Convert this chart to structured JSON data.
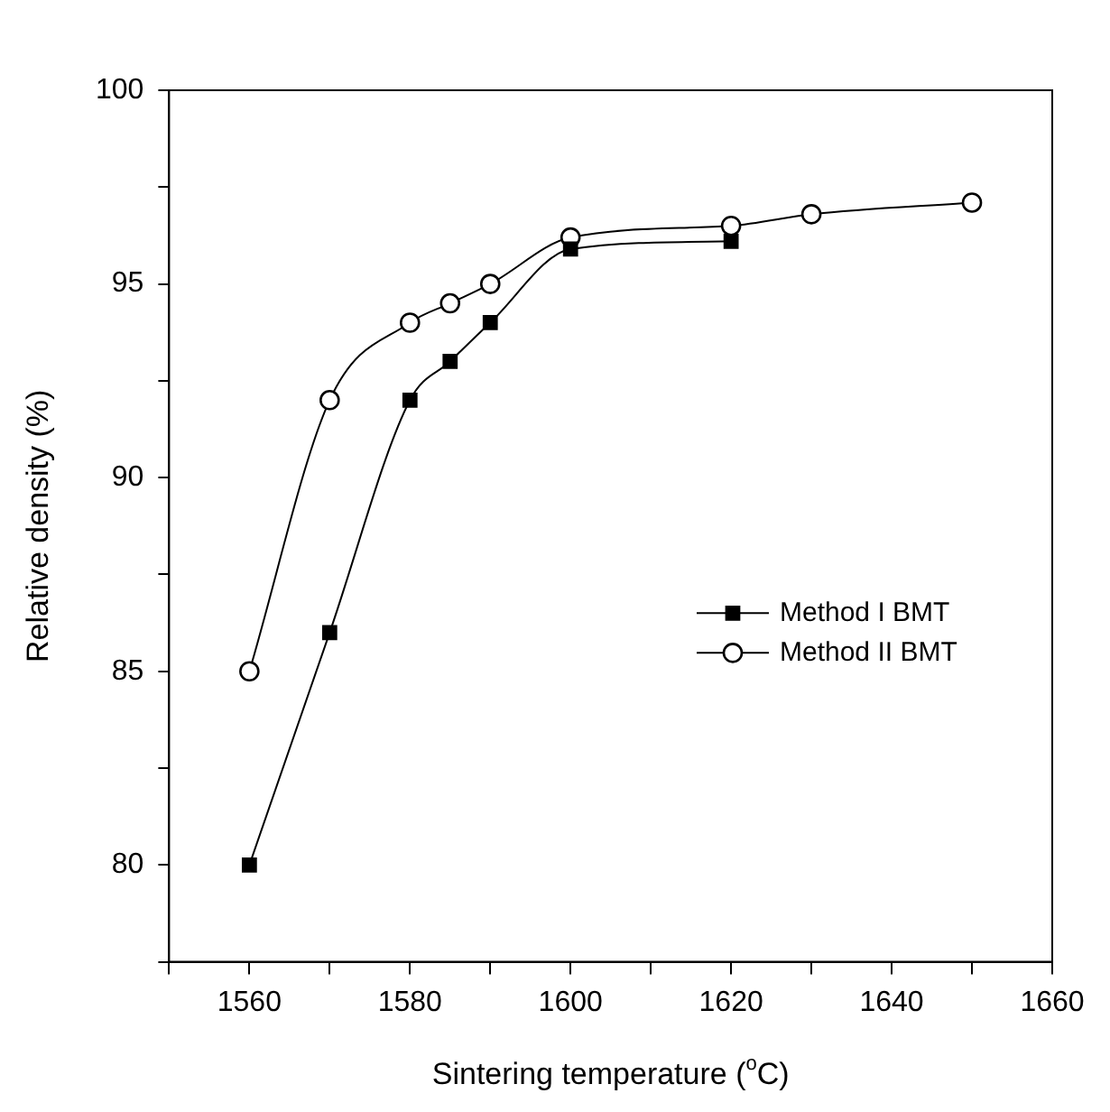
{
  "chart_data": {
    "type": "line",
    "xlabel": "Sintering temperature ($^{o}$C)",
    "ylabel": "Relative density (%)",
    "xlim": [
      1550,
      1660
    ],
    "xticks": [
      {
        "value": 1550,
        "label": null
      },
      1560,
      {
        "value": 1570,
        "label": null
      },
      1580,
      {
        "value": 1590,
        "label": null
      },
      1600,
      {
        "value": 1610,
        "label": null
      },
      1620,
      {
        "value": 1630,
        "label": null
      },
      1640,
      {
        "value": 1650,
        "label": null
      },
      1660
    ],
    "ylim": [
      77.5,
      100
    ],
    "yticks": [
      {
        "value": 77.5,
        "label": null
      },
      80,
      {
        "value": 82.5,
        "label": null
      },
      85,
      {
        "value": 87.5,
        "label": null
      },
      90,
      {
        "value": 92.5,
        "label": null
      },
      95,
      {
        "value": 97.5,
        "label": null
      },
      100
    ],
    "grid": false,
    "legend": "right",
    "series": [
      {
        "name": "Method I BMT",
        "color": "#000000",
        "marker": "square",
        "x": [
          1560,
          1570,
          1580,
          1585,
          1590,
          1600,
          1620
        ],
        "values": [
          80,
          86,
          92,
          93,
          94,
          95.9,
          96.1
        ]
      },
      {
        "name": "Method II BMT",
        "color": "#000000",
        "marker": "circle",
        "x": [
          1560,
          1570,
          1580,
          1585,
          1590,
          1600,
          1620,
          1630,
          1650
        ],
        "values": [
          85,
          92,
          94,
          94.5,
          95,
          96.2,
          96.5,
          96.8,
          97.1
        ]
      }
    ]
  }
}
